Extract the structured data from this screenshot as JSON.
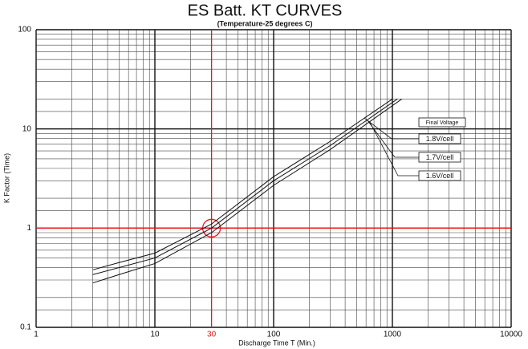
{
  "chart_data": {
    "type": "line",
    "title": "ES Batt. KT CURVES",
    "subtitle": "(Temperature-25 degrees C)",
    "x_label": "Discharge Time T (Min.)",
    "y_label": "K Factor (Time)",
    "x_log": true,
    "y_log": true,
    "grid": true,
    "xlim": [
      1,
      10000
    ],
    "xticks": [
      1,
      10,
      100,
      1000,
      10000
    ],
    "ylim": [
      0.1,
      100
    ],
    "yticks": [
      0.1,
      1,
      10,
      100
    ],
    "x_reference": 30,
    "y_reference": 1,
    "reference_color": "#e8171e",
    "legend_title": "Final Voltage",
    "legend": "right",
    "series": [
      {
        "name": "1.8V/cell",
        "color": "#111111",
        "x": [
          3,
          5,
          10,
          30,
          100,
          300,
          1000
        ],
        "values": [
          0.38,
          0.45,
          0.56,
          1.1,
          3.3,
          7.5,
          20
        ]
      },
      {
        "name": "1.7V/cell",
        "color": "#111111",
        "x": [
          3,
          5,
          10,
          30,
          100,
          300,
          1100
        ],
        "values": [
          0.34,
          0.4,
          0.5,
          1.0,
          3.0,
          6.8,
          20
        ]
      },
      {
        "name": "1.6V/cell",
        "color": "#111111",
        "x": [
          3,
          5,
          10,
          30,
          100,
          300,
          1200
        ],
        "values": [
          0.28,
          0.34,
          0.44,
          0.9,
          2.7,
          6.2,
          20
        ]
      }
    ]
  }
}
